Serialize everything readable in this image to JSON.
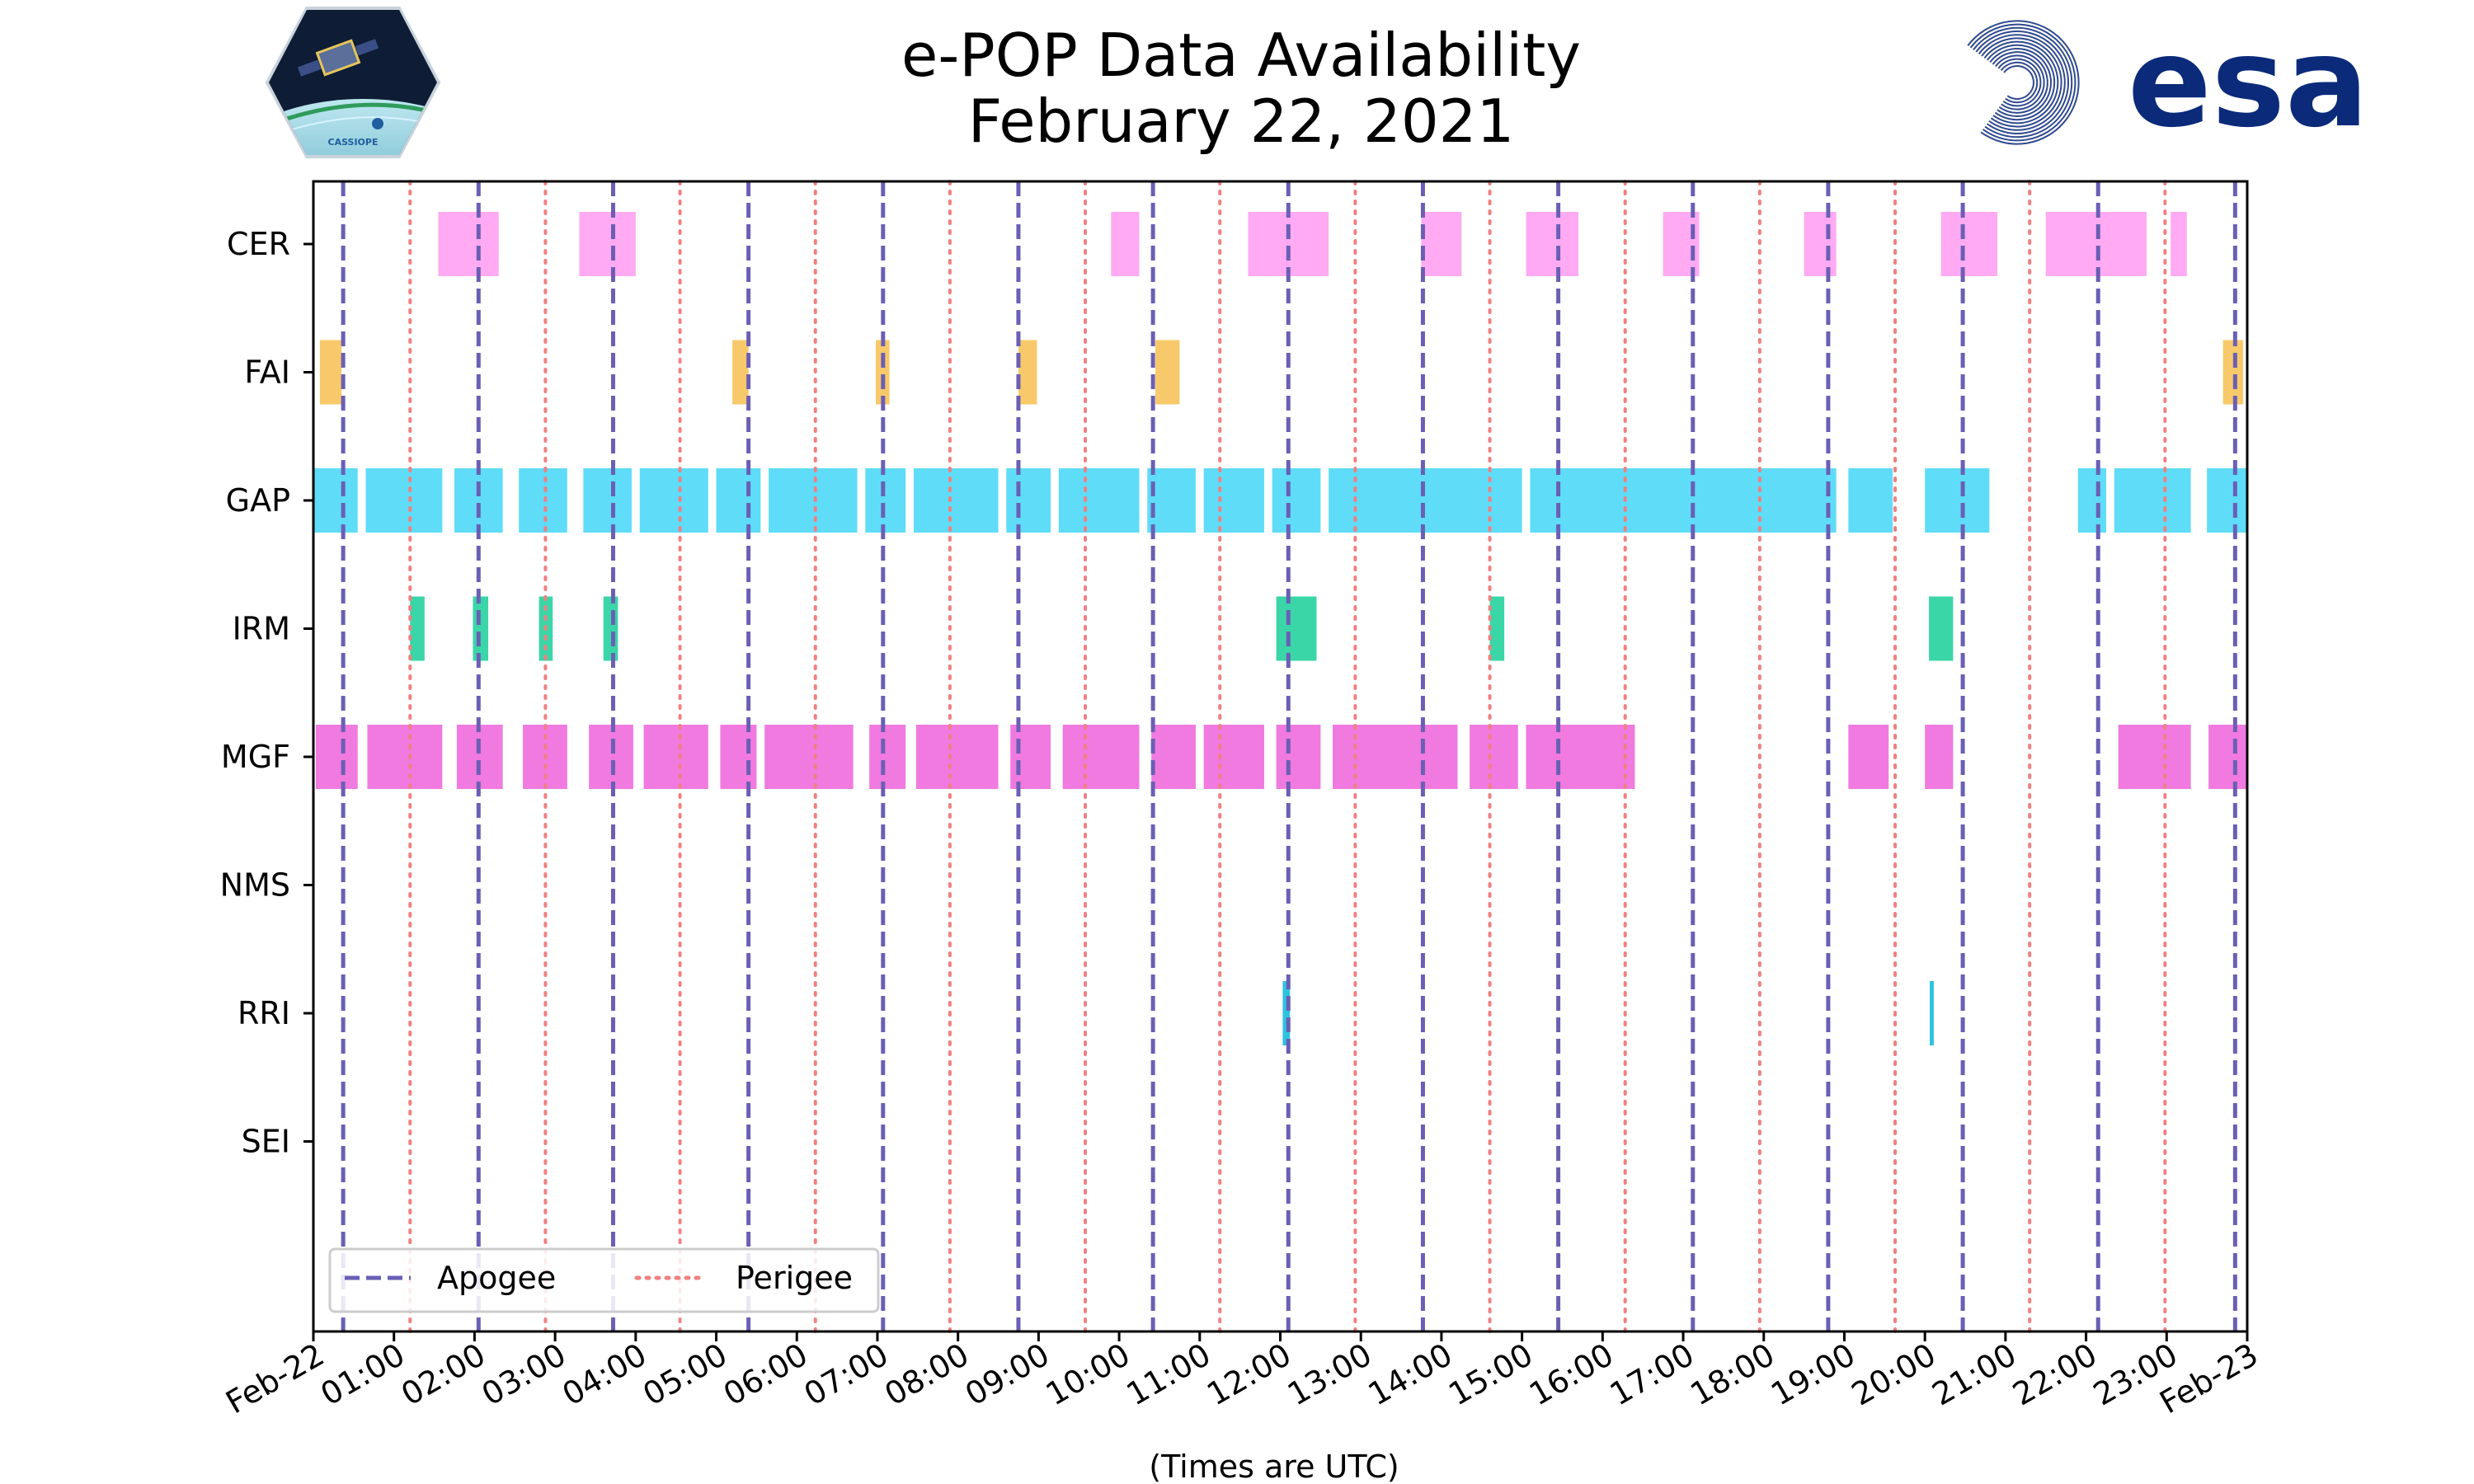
{
  "colors": {
    "apogee": "#6a5fb5",
    "perigee": "#f08080",
    "CER": "#ffaaf2",
    "FAI": "#f8c96a",
    "GAP": "#5fdcf8",
    "IRM": "#3ad6a8",
    "MGF": "#f07adf",
    "RRI": "#2ec3e0",
    "esa": "#0b2a7a"
  },
  "logos": {
    "cassiope_text": "CASSIOPE",
    "esa_text": "esa"
  },
  "chart_data": {
    "type": "timeline",
    "title": [
      "e-POP Data Availability",
      "February 22, 2021"
    ],
    "xlabel": "(Times are UTC)",
    "ylabel": "",
    "xlim": [
      0,
      24
    ],
    "x_tick_values": [
      0,
      1,
      2,
      3,
      4,
      5,
      6,
      7,
      8,
      9,
      10,
      11,
      12,
      13,
      14,
      15,
      16,
      17,
      18,
      19,
      20,
      21,
      22,
      23,
      24
    ],
    "x_tick_labels": [
      "Feb-22",
      "01:00",
      "02:00",
      "03:00",
      "04:00",
      "05:00",
      "06:00",
      "07:00",
      "08:00",
      "09:00",
      "10:00",
      "11:00",
      "12:00",
      "13:00",
      "14:00",
      "15:00",
      "16:00",
      "17:00",
      "18:00",
      "19:00",
      "20:00",
      "21:00",
      "22:00",
      "23:00",
      "Feb-23"
    ],
    "instruments": [
      "CER",
      "FAI",
      "GAP",
      "IRM",
      "MGF",
      "NMS",
      "RRI",
      "SEI"
    ],
    "apogee_times": [
      0.37,
      2.05,
      3.72,
      5.4,
      7.07,
      8.75,
      10.42,
      12.1,
      13.77,
      15.45,
      17.12,
      18.8,
      20.47,
      22.15,
      23.85
    ],
    "perigee_times": [
      1.2,
      2.88,
      4.55,
      6.23,
      7.9,
      9.58,
      11.25,
      12.93,
      14.6,
      16.28,
      17.95,
      19.63,
      21.3,
      22.98
    ],
    "intervals": {
      "CER": [
        [
          1.55,
          2.3
        ],
        [
          3.3,
          4.0
        ],
        [
          9.9,
          10.25
        ],
        [
          11.6,
          12.6
        ],
        [
          13.75,
          14.25
        ],
        [
          15.05,
          15.7
        ],
        [
          16.75,
          17.2
        ],
        [
          18.5,
          18.9
        ],
        [
          20.2,
          20.9
        ],
        [
          21.5,
          22.75
        ],
        [
          23.05,
          23.25
        ]
      ],
      "FAI": [
        [
          0.08,
          0.35
        ],
        [
          5.2,
          5.4
        ],
        [
          6.98,
          7.15
        ],
        [
          8.75,
          8.98
        ],
        [
          10.45,
          10.75
        ],
        [
          23.7,
          23.95
        ]
      ],
      "GAP": [
        [
          0.0,
          0.55
        ],
        [
          0.65,
          1.6
        ],
        [
          1.75,
          2.35
        ],
        [
          2.55,
          3.15
        ],
        [
          3.35,
          3.95
        ],
        [
          4.05,
          4.9
        ],
        [
          5.0,
          5.55
        ],
        [
          5.65,
          6.75
        ],
        [
          6.85,
          7.35
        ],
        [
          7.45,
          8.5
        ],
        [
          8.6,
          9.15
        ],
        [
          9.25,
          10.25
        ],
        [
          10.35,
          10.95
        ],
        [
          11.05,
          11.8
        ],
        [
          11.9,
          12.5
        ],
        [
          12.6,
          15.0
        ],
        [
          15.1,
          18.9
        ],
        [
          19.05,
          19.6
        ],
        [
          20.0,
          20.8
        ],
        [
          21.9,
          22.25
        ],
        [
          22.35,
          23.3
        ],
        [
          23.5,
          24.0
        ]
      ],
      "IRM": [
        [
          1.2,
          1.38
        ],
        [
          1.98,
          2.17
        ],
        [
          2.8,
          2.97
        ],
        [
          3.6,
          3.78
        ],
        [
          11.95,
          12.45
        ],
        [
          14.6,
          14.78
        ],
        [
          20.05,
          20.35
        ]
      ],
      "MGF": [
        [
          0.03,
          0.55
        ],
        [
          0.67,
          1.6
        ],
        [
          1.78,
          2.35
        ],
        [
          2.6,
          3.15
        ],
        [
          3.42,
          3.97
        ],
        [
          4.1,
          4.9
        ],
        [
          5.05,
          5.5
        ],
        [
          5.6,
          6.7
        ],
        [
          6.9,
          7.35
        ],
        [
          7.48,
          8.5
        ],
        [
          8.65,
          9.15
        ],
        [
          9.3,
          10.25
        ],
        [
          10.4,
          10.95
        ],
        [
          11.05,
          11.8
        ],
        [
          11.95,
          12.5
        ],
        [
          12.65,
          14.2
        ],
        [
          14.35,
          14.95
        ],
        [
          15.05,
          16.4
        ],
        [
          19.05,
          19.55
        ],
        [
          20.0,
          20.35
        ],
        [
          22.4,
          23.3
        ],
        [
          23.52,
          24.0
        ]
      ],
      "NMS": [],
      "RRI": [
        [
          12.03,
          12.12
        ],
        [
          20.06,
          20.11
        ]
      ],
      "SEI": []
    },
    "legend": [
      "Apogee",
      "Perigee"
    ],
    "legend_position": "lower-left",
    "grid": false
  }
}
